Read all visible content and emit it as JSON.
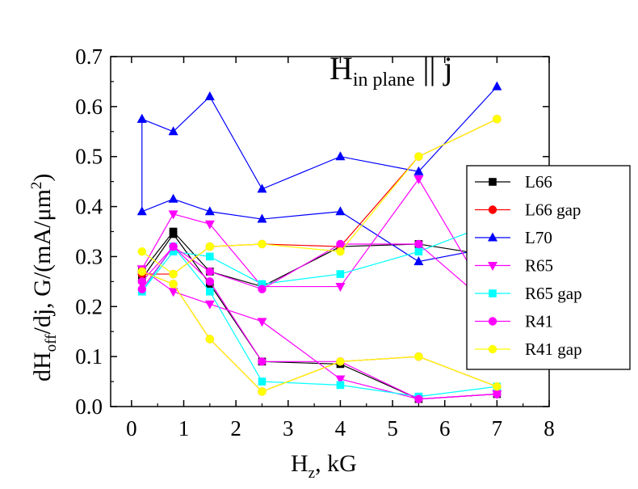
{
  "chart_data": {
    "type": "line",
    "annotation": {
      "main": "H",
      "sub": "in plane",
      "rest": " || j"
    },
    "xlabel": {
      "main": "H",
      "sub": "z",
      "rest": ", kG"
    },
    "ylabel": {
      "a": "dH",
      "b": "off",
      "c": "/dj, G/(mA/μm",
      "d": "2",
      "e": ")"
    },
    "xlim": [
      -0.4,
      8
    ],
    "ylim": [
      0,
      0.7
    ],
    "xticks": [
      "0",
      "1",
      "2",
      "3",
      "4",
      "5",
      "6",
      "7",
      "8"
    ],
    "yticks": [
      "0.0",
      "0.1",
      "0.2",
      "0.3",
      "0.4",
      "0.5",
      "0.6",
      "0.7"
    ],
    "legend_position": "right",
    "series": [
      {
        "name": "L66",
        "color": "#000000",
        "marker": "square",
        "lines": [
          [
            [
              0.2,
              0.27
            ],
            [
              0.8,
              0.35
            ],
            [
              1.5,
              0.27
            ],
            [
              2.5,
              0.24
            ],
            [
              4,
              0.32
            ],
            [
              5.5,
              0.325
            ],
            [
              7,
              0.3
            ]
          ],
          [
            [
              0.2,
              0.255
            ],
            [
              0.8,
              0.345
            ],
            [
              1.5,
              0.245
            ],
            [
              2.5,
              0.09
            ],
            [
              4,
              0.085
            ],
            [
              5.5,
              0.015
            ],
            [
              7,
              0.025
            ]
          ]
        ]
      },
      {
        "name": "L66 gap",
        "color": "#ff0000",
        "marker": "circle",
        "lines": [
          [
            [
              0.2,
              0.265
            ],
            [
              0.8,
              0.265
            ],
            [
              1.5,
              0.32
            ],
            [
              2.5,
              0.325
            ],
            [
              4,
              0.32
            ],
            [
              5.5,
              0.5
            ],
            [
              7,
              0.575
            ]
          ],
          [
            [
              0.2,
              0.27
            ],
            [
              0.8,
              0.245
            ],
            [
              1.5,
              0.135
            ],
            [
              2.5,
              0.03
            ],
            [
              4,
              0.09
            ],
            [
              5.5,
              0.1
            ],
            [
              7,
              0.04
            ]
          ]
        ]
      },
      {
        "name": "L70",
        "color": "#0000ff",
        "marker": "triangle-up",
        "lines": [
          [
            [
              0.2,
              0.575
            ],
            [
              0.8,
              0.55
            ],
            [
              1.5,
              0.62
            ],
            [
              2.5,
              0.435
            ],
            [
              4,
              0.5
            ],
            [
              5.5,
              0.47
            ],
            [
              7,
              0.64
            ]
          ],
          [
            [
              0.2,
              0.575
            ],
            [
              0.2,
              0.39
            ],
            [
              0.8,
              0.415
            ],
            [
              1.5,
              0.39
            ],
            [
              2.5,
              0.375
            ],
            [
              4,
              0.39
            ],
            [
              5.5,
              0.29
            ],
            [
              7,
              0.32
            ]
          ]
        ]
      },
      {
        "name": "R65",
        "color": "#ff00ff",
        "marker": "triangle-down",
        "lines": [
          [
            [
              0.2,
              0.275
            ],
            [
              0.8,
              0.385
            ],
            [
              1.5,
              0.365
            ],
            [
              2.5,
              0.24
            ],
            [
              4,
              0.24
            ],
            [
              5.5,
              0.455
            ],
            [
              7,
              0.19
            ]
          ],
          [
            [
              0.2,
              0.275
            ],
            [
              0.8,
              0.23
            ],
            [
              1.5,
              0.205
            ],
            [
              2.5,
              0.17
            ],
            [
              4,
              0.055
            ],
            [
              5.5,
              0.015
            ],
            [
              7,
              0.025
            ]
          ]
        ]
      },
      {
        "name": "R65 gap",
        "color": "#00ffff",
        "marker": "square",
        "lines": [
          [
            [
              0.2,
              0.23
            ],
            [
              0.8,
              0.31
            ],
            [
              1.5,
              0.3
            ],
            [
              2.5,
              0.245
            ],
            [
              4,
              0.265
            ],
            [
              5.5,
              0.31
            ],
            [
              7,
              0.37
            ]
          ],
          [
            [
              0.2,
              0.23
            ],
            [
              0.8,
              0.32
            ],
            [
              1.5,
              0.23
            ],
            [
              2.5,
              0.05
            ],
            [
              4,
              0.043
            ],
            [
              5.5,
              0.02
            ],
            [
              7,
              0.04
            ]
          ]
        ]
      },
      {
        "name": "R41",
        "color": "#ff00ff",
        "marker": "circle",
        "lines": [
          [
            [
              0.2,
              0.235
            ],
            [
              0.8,
              0.32
            ],
            [
              1.5,
              0.27
            ],
            [
              2.5,
              0.235
            ],
            [
              4,
              0.325
            ],
            [
              5.5,
              0.325
            ],
            [
              7,
              0.19
            ]
          ],
          [
            [
              0.2,
              0.25
            ],
            [
              0.8,
              0.32
            ],
            [
              1.5,
              0.25
            ],
            [
              2.5,
              0.09
            ],
            [
              4,
              0.09
            ],
            [
              5.5,
              0.015
            ],
            [
              7,
              0.025
            ]
          ]
        ]
      },
      {
        "name": "R41 gap",
        "color": "#ffff00",
        "marker": "circle",
        "lines": [
          [
            [
              0.2,
              0.31
            ],
            [
              0.8,
              0.265
            ],
            [
              1.5,
              0.32
            ],
            [
              2.5,
              0.325
            ],
            [
              4,
              0.31
            ],
            [
              5.5,
              0.5
            ],
            [
              7,
              0.575
            ]
          ],
          [
            [
              0.2,
              0.27
            ],
            [
              0.8,
              0.245
            ],
            [
              1.5,
              0.135
            ],
            [
              2.5,
              0.03
            ],
            [
              4,
              0.09
            ],
            [
              5.5,
              0.1
            ],
            [
              7,
              0.04
            ]
          ]
        ]
      }
    ]
  }
}
